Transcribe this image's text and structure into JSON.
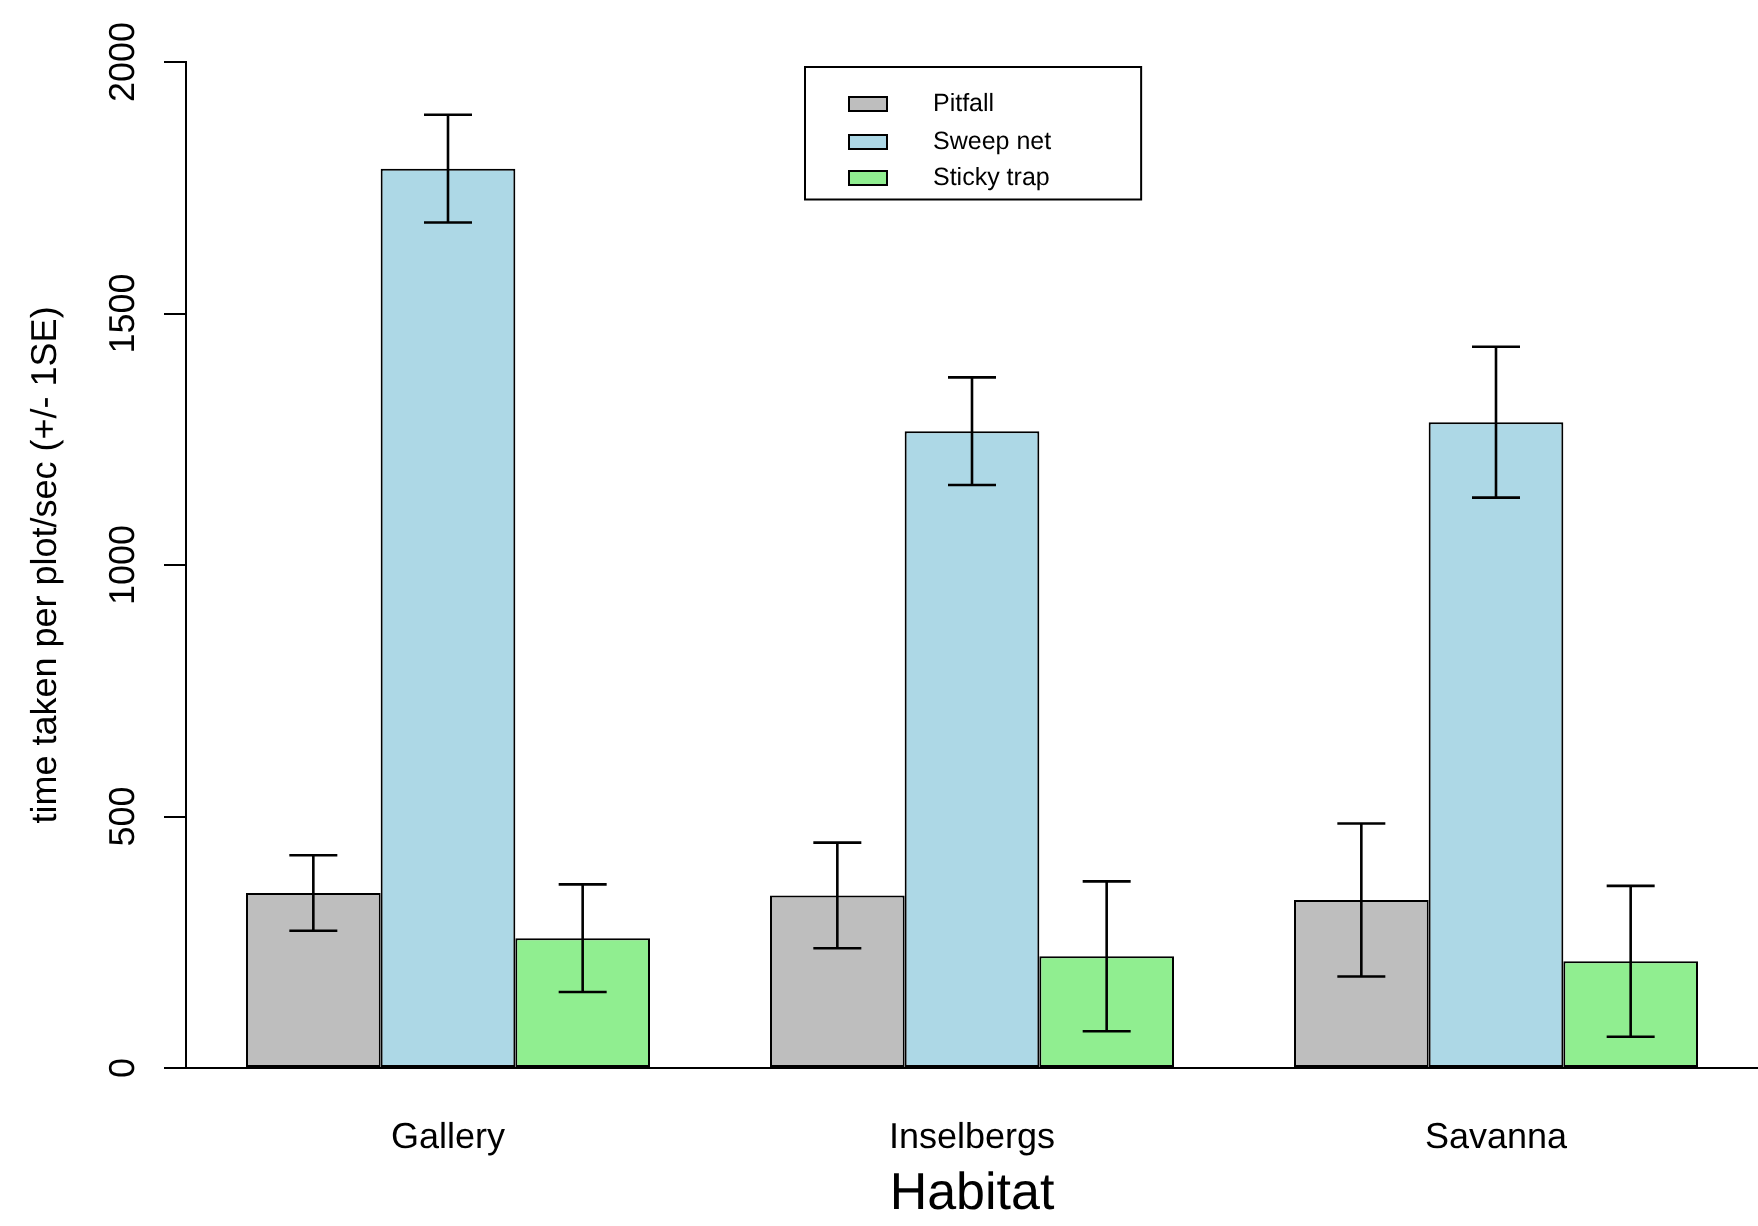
{
  "chart_data": {
    "type": "bar",
    "xlabel": "Habitat",
    "ylabel": "time taken per plot/sec (+/- 1SE)",
    "categories": [
      "Gallery",
      "Inselbergs",
      "Savanna"
    ],
    "series": [
      {
        "name": "Pitfall",
        "color": "#bebebe",
        "values": [
          348,
          343,
          334
        ],
        "errors": [
          75,
          105,
          152
        ]
      },
      {
        "name": "Sweep net",
        "color": "#add8e6",
        "values": [
          1788,
          1266,
          1284
        ],
        "errors": [
          107,
          107,
          150
        ]
      },
      {
        "name": "Sticky trap",
        "color": "#90ee90",
        "values": [
          258,
          222,
          212
        ],
        "errors": [
          107,
          149,
          150
        ]
      }
    ],
    "ylim": [
      0,
      2000
    ],
    "yticks": [
      0,
      500,
      1000,
      1500,
      2000
    ],
    "grid": false,
    "legend": "top"
  }
}
